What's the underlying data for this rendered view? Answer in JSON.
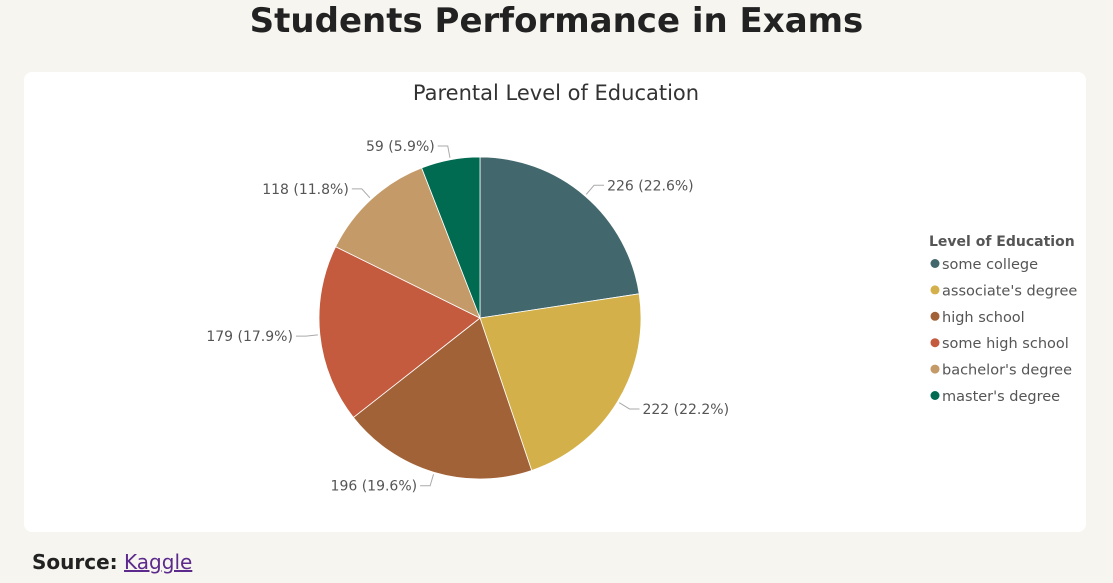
{
  "page": {
    "title": "Students Performance in Exams",
    "source_prefix": "Source:",
    "source_link": "Kaggle"
  },
  "chart_data": {
    "type": "pie",
    "title": "Parental Level of Education",
    "legend": {
      "title": "Level of Education",
      "placement": "right"
    },
    "categories": [
      "some college",
      "associate's degree",
      "high school",
      "some high school",
      "bachelor's degree",
      "master's degree"
    ],
    "values": [
      226,
      222,
      196,
      179,
      118,
      59
    ],
    "labels": [
      "226 (22.6%)",
      "222 (22.2%)",
      "196 (19.6%)",
      "179 (17.9%)",
      "118 (11.8%)",
      "59 (5.9%)"
    ],
    "colors": [
      "#42686e",
      "#d3b04a",
      "#a26237",
      "#c45a3e",
      "#c49a69",
      "#006b50"
    ]
  }
}
